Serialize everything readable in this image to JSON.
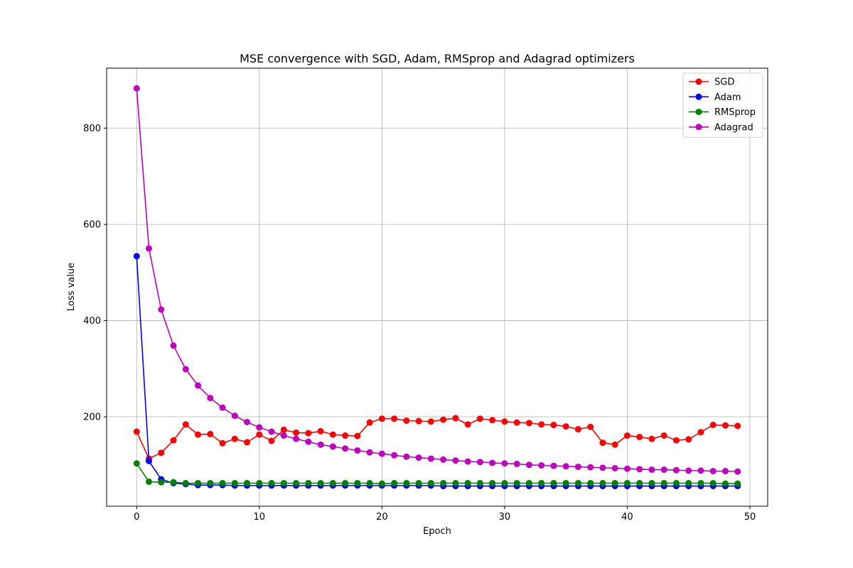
{
  "chart_data": {
    "type": "line",
    "title": "MSE convergence with SGD, Adam, RMSprop and Adagrad optimizers",
    "xlabel": "Epoch",
    "ylabel": "Loss value",
    "xlim": [
      -2.45,
      51.45
    ],
    "ylim": [
      14,
      925
    ],
    "xticks": [
      0,
      10,
      20,
      30,
      40,
      50
    ],
    "yticks": [
      200,
      400,
      600,
      800
    ],
    "grid": true,
    "legend_position": "top-right",
    "x": [
      0,
      1,
      2,
      3,
      4,
      5,
      6,
      7,
      8,
      9,
      10,
      11,
      12,
      13,
      14,
      15,
      16,
      17,
      18,
      19,
      20,
      21,
      22,
      23,
      24,
      25,
      26,
      27,
      28,
      29,
      30,
      31,
      32,
      33,
      34,
      35,
      36,
      37,
      38,
      39,
      40,
      41,
      42,
      43,
      44,
      45,
      46,
      47,
      48,
      49
    ],
    "series": [
      {
        "name": "SGD",
        "color": "#ff0000",
        "values": [
          169,
          113,
          125,
          151,
          184,
          163,
          164,
          145,
          154,
          147,
          163,
          150,
          173,
          167,
          166,
          170,
          163,
          161,
          160,
          188,
          196,
          196,
          192,
          191,
          190,
          194,
          197,
          184,
          196,
          193,
          190,
          188,
          187,
          184,
          183,
          180,
          174,
          179,
          146,
          142,
          161,
          158,
          154,
          161,
          151,
          153,
          168,
          183,
          182,
          181
        ]
      },
      {
        "name": "Adam",
        "color": "#0000ff",
        "values": [
          534,
          108,
          70,
          62,
          60,
          58,
          58,
          58,
          57,
          57,
          57,
          57,
          57,
          57,
          57,
          57,
          57,
          57,
          57,
          57,
          57,
          57,
          57,
          57,
          57,
          56,
          56,
          56,
          56,
          56,
          56,
          56,
          56,
          56,
          56,
          56,
          56,
          56,
          56,
          56,
          56,
          56,
          56,
          56,
          56,
          56,
          56,
          56,
          56,
          56
        ]
      },
      {
        "name": "RMSprop",
        "color": "#008000",
        "values": [
          103,
          65,
          64,
          64,
          62,
          62,
          62,
          62,
          62,
          62,
          62,
          62,
          62,
          62,
          62,
          62,
          62,
          62,
          62,
          62,
          61,
          62,
          62,
          62,
          62,
          62,
          62,
          62,
          62,
          62,
          62,
          62,
          62,
          62,
          62,
          62,
          62,
          62,
          62,
          62,
          62,
          62,
          62,
          62,
          62,
          62,
          62,
          62,
          61,
          61
        ]
      },
      {
        "name": "Adagrad",
        "color": "#bf00bf",
        "values": [
          883,
          550,
          423,
          348,
          299,
          265,
          239,
          219,
          202,
          189,
          178,
          169,
          161,
          154,
          148,
          142,
          138,
          134,
          130,
          126,
          123,
          120,
          117,
          115,
          113,
          111,
          109,
          107,
          106,
          104,
          103,
          102,
          100,
          99,
          98,
          97,
          96,
          95,
          94,
          93,
          92,
          91,
          90,
          90,
          89,
          88,
          88,
          87,
          87,
          86
        ]
      }
    ]
  }
}
